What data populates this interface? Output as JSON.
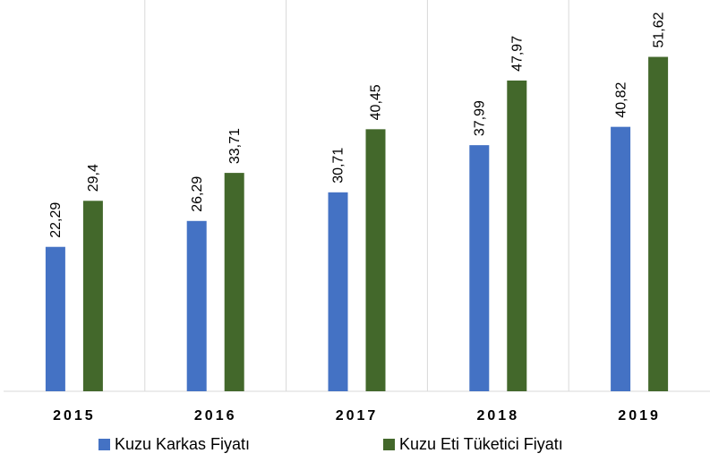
{
  "chart_data": {
    "type": "bar",
    "categories": [
      "2015",
      "2016",
      "2017",
      "2018",
      "2019"
    ],
    "series": [
      {
        "name": "Kuzu Karkas Fiyatı",
        "color": "#4472c4",
        "values": [
          22.29,
          26.29,
          30.71,
          37.99,
          40.82
        ],
        "value_labels": [
          "22,29",
          "26,29",
          "30,71",
          "37,99",
          "40,82"
        ]
      },
      {
        "name": "Kuzu Eti Tüketici Fiyatı",
        "color": "#43682b",
        "values": [
          29.4,
          33.71,
          40.45,
          47.97,
          51.62
        ],
        "value_labels": [
          "29,4",
          "33,71",
          "40,45",
          "47,97",
          "51,62"
        ]
      }
    ],
    "ylim": [
      0,
      60.4
    ]
  }
}
